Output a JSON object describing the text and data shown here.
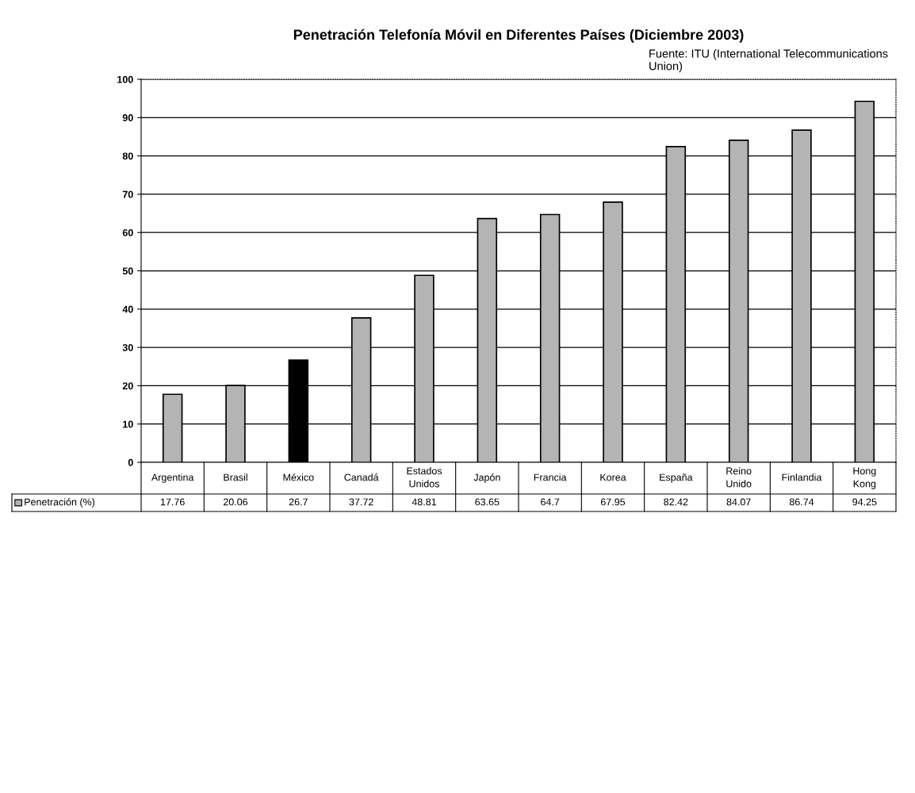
{
  "chart_data": {
    "type": "bar",
    "title": "Penetración Telefonía Móvil en Diferentes Países (Diciembre 2003)",
    "annotations": [
      "Fuente: ITU (International Telecommunications Union)"
    ],
    "categories": [
      "Argentina",
      "Brasil",
      "México",
      "Canadá",
      "Estados Unidos",
      "Japón",
      "Francia",
      "Korea",
      "España",
      "Reino Unido",
      "Finlandia",
      "Hong Kong"
    ],
    "series": [
      {
        "name": "Penetración (%)",
        "color": "#b4b4b4",
        "colors": [
          "#b4b4b4",
          "#b4b4b4",
          "#000000",
          "#b4b4b4",
          "#b4b4b4",
          "#b4b4b4",
          "#b4b4b4",
          "#b4b4b4",
          "#b4b4b4",
          "#b4b4b4",
          "#b4b4b4",
          "#b4b4b4"
        ],
        "values": [
          17.76,
          20.06,
          26.7,
          37.72,
          48.81,
          63.65,
          64.7,
          67.95,
          82.42,
          84.07,
          86.74,
          94.25
        ]
      }
    ],
    "ylim": [
      0,
      100
    ],
    "yticks": [
      0,
      10,
      20,
      30,
      40,
      50,
      60,
      70,
      80,
      90,
      100
    ],
    "grid": "y",
    "data_labels": true,
    "legend": "bottom left"
  }
}
